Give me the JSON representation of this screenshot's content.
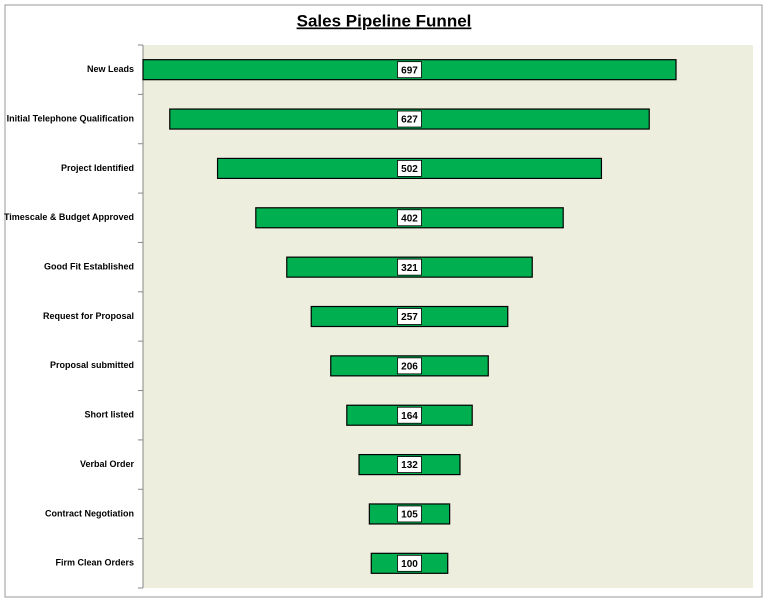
{
  "chart_data": {
    "type": "funnel",
    "title": "Sales Pipeline Funnel",
    "categories": [
      "New Leads",
      "Initial Telephone Qualification",
      "Project Identified",
      "Timescale & Budget Approved",
      "Good Fit Established",
      "Request for Proposal",
      "Proposal submitted",
      "Short listed",
      "Verbal Order",
      "Contract Negotiation",
      "Firm Clean Orders"
    ],
    "values": [
      697,
      627,
      502,
      402,
      321,
      257,
      206,
      164,
      132,
      105,
      100
    ],
    "color": "#00b050",
    "background": "#eeeedf"
  }
}
